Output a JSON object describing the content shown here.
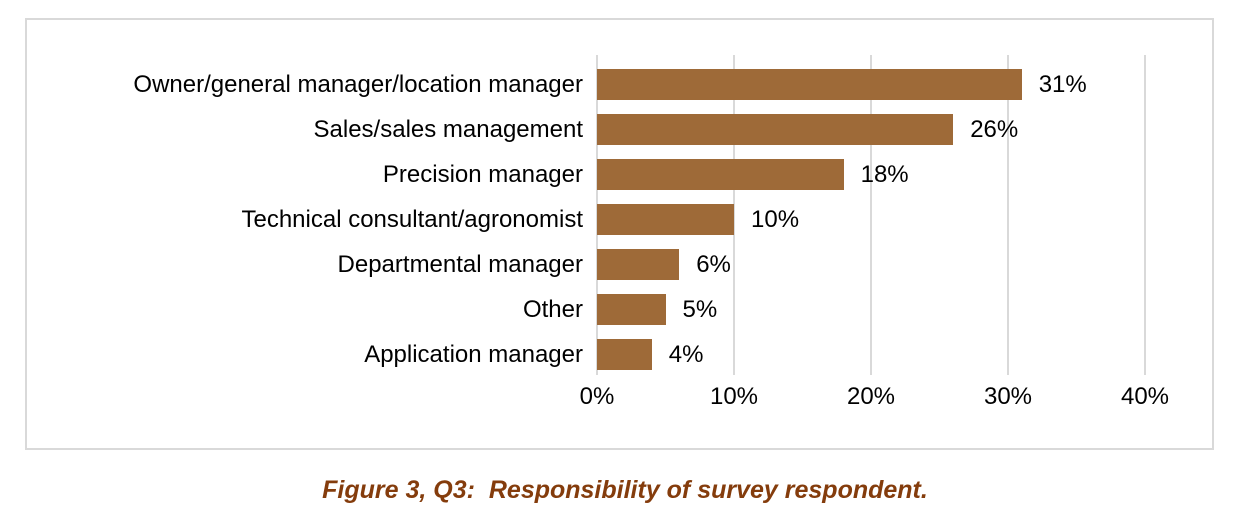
{
  "chart_data": {
    "type": "bar",
    "orientation": "horizontal",
    "title": "",
    "xlabel": "",
    "ylabel": "",
    "categories": [
      "Owner/general manager/location manager",
      "Sales/sales management",
      "Precision manager",
      "Technical consultant/agronomist",
      "Departmental manager",
      "Other",
      "Application manager"
    ],
    "values": [
      31,
      26,
      18,
      10,
      6,
      5,
      4
    ],
    "value_labels": [
      "31%",
      "26%",
      "18%",
      "10%",
      "6%",
      "5%",
      "4%"
    ],
    "x_axis": {
      "min": 0,
      "max": 40,
      "tick_values": [
        0,
        10,
        20,
        30,
        40
      ],
      "ticks": [
        "0%",
        "10%",
        "20%",
        "30%",
        "40%"
      ]
    },
    "legend": "none",
    "grid": "vertical-only",
    "bar_color": "#9E6A38",
    "gridline_color": "#D9D9D9",
    "plot_border_color": "#D9D9D9",
    "label_color": "#000000"
  },
  "caption": {
    "text": "Figure 3, Q3:  Responsibility of survey respondent.",
    "color": "#843C0C"
  }
}
